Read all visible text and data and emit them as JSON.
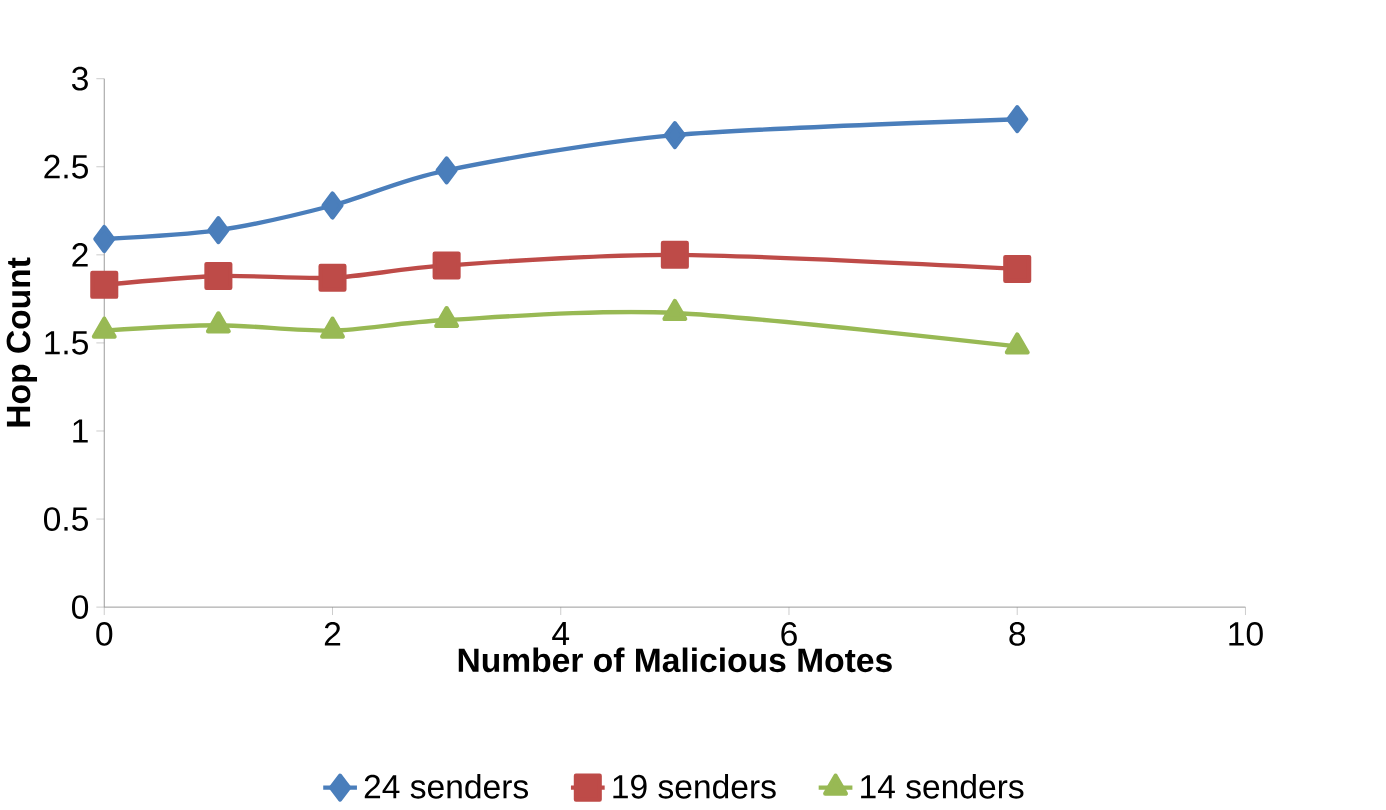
{
  "chart_data": {
    "type": "line",
    "xlabel": "Number of Malicious Motes",
    "ylabel": "Hop Count",
    "x": [
      0,
      1,
      2,
      3,
      5,
      8
    ],
    "series": [
      {
        "name": "24 senders",
        "color": "#4a7ebb",
        "marker": "diamond",
        "values": [
          2.09,
          2.14,
          2.28,
          2.48,
          2.68,
          2.77
        ]
      },
      {
        "name": "19 senders",
        "color": "#be4b48",
        "marker": "square",
        "values": [
          1.83,
          1.88,
          1.87,
          1.94,
          2.0,
          1.92
        ]
      },
      {
        "name": "14 senders",
        "color": "#98b954",
        "marker": "triangle",
        "values": [
          1.57,
          1.6,
          1.57,
          1.63,
          1.67,
          1.48
        ]
      }
    ],
    "xlim": [
      0,
      10
    ],
    "xticks": [
      0,
      2,
      4,
      6,
      8,
      10
    ],
    "ylim": [
      0,
      3
    ],
    "yticks": [
      0,
      0.5,
      1,
      1.5,
      2,
      2.5,
      3
    ],
    "grid": false,
    "legend": "bottom",
    "line_style": "solid"
  }
}
